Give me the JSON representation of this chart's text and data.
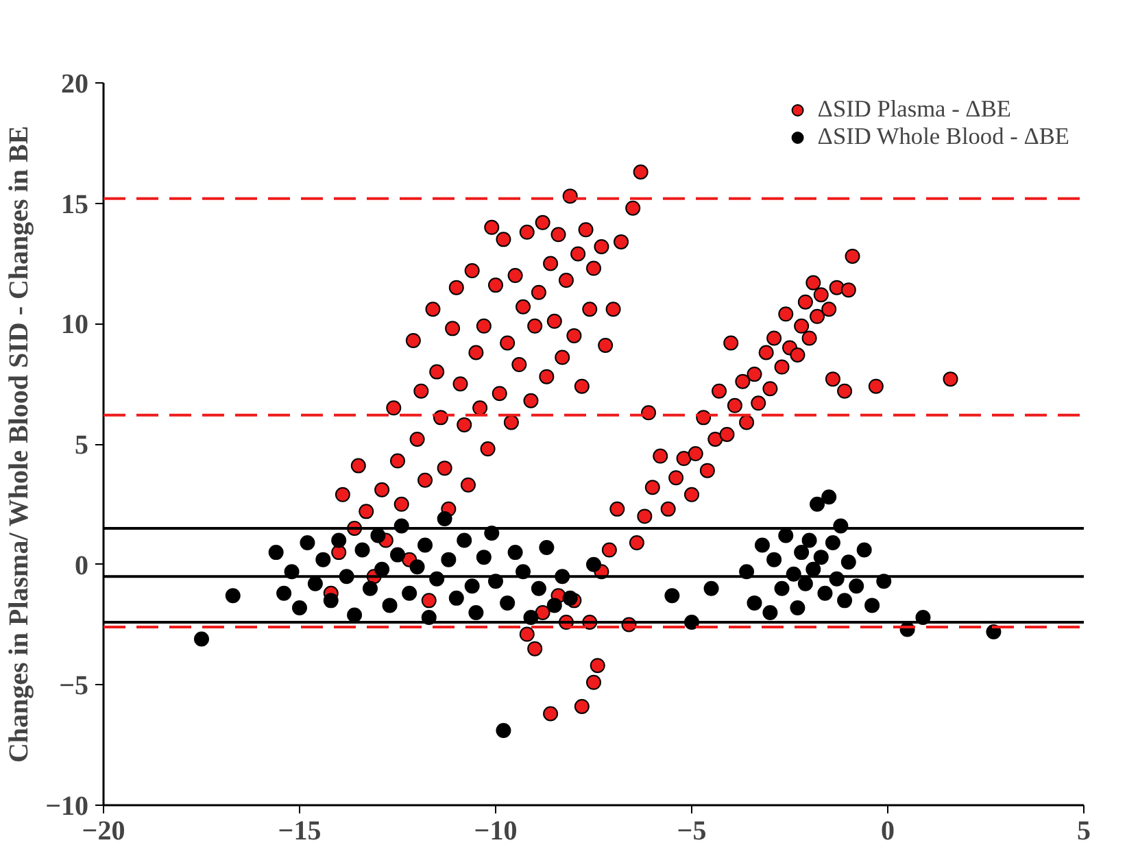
{
  "chart_data": {
    "type": "scatter",
    "ylabel": "Changes in Plasma/ Whole Blood SID - Changes in BE",
    "xlim": [
      -20,
      5
    ],
    "ylim": [
      -10,
      20
    ],
    "xticks": [
      -20,
      -15,
      -10,
      -5,
      0,
      5
    ],
    "yticks": [
      -10,
      -5,
      0,
      5,
      10,
      15,
      20
    ],
    "grid": false,
    "legend": "top right",
    "marker": "circle",
    "series": [
      {
        "name": "ΔSID Plasma - ΔBE",
        "color": "#ee1c1c",
        "x": [
          -14.2,
          -14,
          -13.9,
          -13.6,
          -13.5,
          -13.3,
          -13.1,
          -12.9,
          -12.8,
          -12.6,
          -12.5,
          -12.4,
          -12.2,
          -12.1,
          -12,
          -11.9,
          -11.8,
          -11.7,
          -11.6,
          -11.5,
          -11.4,
          -11.3,
          -11.2,
          -11.1,
          -11,
          -10.9,
          -10.8,
          -10.7,
          -10.6,
          -10.5,
          -10.4,
          -10.3,
          -10.2,
          -10.1,
          -10,
          -9.9,
          -9.8,
          -9.7,
          -9.6,
          -9.5,
          -9.4,
          -9.3,
          -9.2,
          -9.1,
          -9,
          -8.9,
          -8.8,
          -8.7,
          -8.6,
          -8.5,
          -8.4,
          -8.3,
          -8.2,
          -8.1,
          -8,
          -7.9,
          -7.8,
          -7.7,
          -7.6,
          -7.5,
          -7.3,
          -7.2,
          -7,
          -6.8,
          -6.5,
          -6.3,
          -6.1,
          -9.2,
          -9,
          -8.8,
          -8.6,
          -8.4,
          -8.2,
          -8,
          -7.8,
          -7.6,
          -7.5,
          -7.4,
          -7.3,
          -7.1,
          -6.9,
          -6.6,
          -6.4,
          -6.2,
          -6,
          -5.8,
          -5.6,
          -5.4,
          -5.2,
          -5,
          -4.9,
          -4.7,
          -4.6,
          -4.4,
          -4.3,
          -4.1,
          -4,
          -3.9,
          -3.7,
          -3.6,
          -3.4,
          -3.3,
          -3.1,
          -3,
          -2.9,
          -2.7,
          -2.6,
          -2.5,
          -2.3,
          -2.2,
          -2.1,
          -2,
          -1.9,
          -1.8,
          -1.7,
          -1.5,
          -1.4,
          -1.3,
          -1.1,
          -1,
          -0.9,
          -0.3,
          1.6
        ],
        "values": [
          -1.2,
          0.5,
          2.9,
          1.5,
          4.1,
          2.2,
          -0.5,
          3.1,
          1,
          6.5,
          4.3,
          2.5,
          0.2,
          9.3,
          5.2,
          7.2,
          3.5,
          -1.5,
          10.6,
          8,
          6.1,
          4,
          2.3,
          9.8,
          11.5,
          7.5,
          5.8,
          3.3,
          12.2,
          8.8,
          6.5,
          9.9,
          4.8,
          14,
          11.6,
          7.1,
          13.5,
          9.2,
          5.9,
          12,
          8.3,
          10.7,
          13.8,
          6.8,
          9.9,
          11.3,
          14.2,
          7.8,
          12.5,
          10.1,
          13.7,
          8.6,
          11.8,
          15.3,
          9.5,
          12.9,
          7.4,
          13.9,
          10.6,
          12.3,
          13.2,
          9.1,
          10.6,
          13.4,
          14.8,
          16.3,
          6.3,
          -2.9,
          -3.5,
          -2,
          -6.2,
          -1.3,
          -2.4,
          -1.5,
          -5.9,
          -2.4,
          -4.9,
          -4.2,
          -0.3,
          0.6,
          2.3,
          -2.5,
          0.9,
          2,
          3.2,
          4.5,
          2.3,
          3.6,
          4.4,
          2.9,
          4.6,
          6.1,
          3.9,
          5.2,
          7.2,
          5.4,
          9.2,
          6.6,
          7.6,
          5.9,
          7.9,
          6.7,
          8.8,
          7.3,
          9.4,
          8.2,
          10.4,
          9,
          8.7,
          9.9,
          10.9,
          9.4,
          11.7,
          10.3,
          11.2,
          10.6,
          7.7,
          11.5,
          7.2,
          11.4,
          12.8,
          7.4,
          7.7
        ]
      },
      {
        "name": "ΔSID Whole Blood - ΔBE",
        "color": "#000000",
        "x": [
          -17.5,
          -16.7,
          -15.6,
          -15.4,
          -15.2,
          -15,
          -14.8,
          -14.6,
          -14.4,
          -14.2,
          -14,
          -13.8,
          -13.6,
          -13.4,
          -13.2,
          -13,
          -12.9,
          -12.7,
          -12.5,
          -12.4,
          -12.2,
          -12,
          -11.8,
          -11.7,
          -11.5,
          -11.3,
          -11.2,
          -11,
          -10.8,
          -10.6,
          -10.5,
          -10.3,
          -10.1,
          -10,
          -9.8,
          -9.7,
          -9.5,
          -9.3,
          -9.1,
          -8.9,
          -8.7,
          -8.5,
          -8.3,
          -8.1,
          -7.5,
          -5.5,
          -5,
          -4.5,
          -3.6,
          -3.4,
          -3.2,
          -3,
          -2.9,
          -2.7,
          -2.6,
          -2.4,
          -2.3,
          -2.2,
          -2.1,
          -2,
          -1.9,
          -1.8,
          -1.7,
          -1.6,
          -1.5,
          -1.4,
          -1.3,
          -1.2,
          -1.1,
          -1,
          -0.8,
          -0.6,
          -0.4,
          -0.1,
          0.5,
          0.9,
          2.7
        ],
        "values": [
          -3.1,
          -1.3,
          0.5,
          -1.2,
          -0.3,
          -1.8,
          0.9,
          -0.8,
          0.2,
          -1.5,
          1,
          -0.5,
          -2.1,
          0.6,
          -1,
          1.2,
          -0.2,
          -1.7,
          0.4,
          1.6,
          -1.2,
          -0.1,
          0.8,
          -2.2,
          -0.6,
          1.9,
          0.2,
          -1.4,
          1,
          -0.9,
          -2,
          0.3,
          1.3,
          -0.7,
          -6.9,
          -1.6,
          0.5,
          -0.3,
          -2.2,
          -1,
          0.7,
          -1.7,
          -0.5,
          -1.4,
          0,
          -1.3,
          -2.4,
          -1,
          -0.3,
          -1.6,
          0.8,
          -2,
          0.2,
          -1,
          1.2,
          -0.4,
          -1.8,
          0.5,
          -0.8,
          1,
          -0.2,
          2.5,
          0.3,
          -1.2,
          2.8,
          0.9,
          -0.6,
          1.6,
          -1.5,
          0.1,
          -0.9,
          0.6,
          -1.7,
          -0.7,
          -2.7,
          -2.2,
          -2.8
        ]
      }
    ],
    "ref_lines": [
      {
        "axis": "y",
        "value": 15.2,
        "color": "#ee1c1c",
        "line_style": "dashed"
      },
      {
        "axis": "y",
        "value": 6.2,
        "color": "#ee1c1c",
        "line_style": "dashed"
      },
      {
        "axis": "y",
        "value": -2.6,
        "color": "#ee1c1c",
        "line_style": "dashed"
      },
      {
        "axis": "y",
        "value": 1.5,
        "color": "#000000",
        "line_style": "solid"
      },
      {
        "axis": "y",
        "value": -0.5,
        "color": "#000000",
        "line_style": "solid"
      },
      {
        "axis": "y",
        "value": -2.4,
        "color": "#000000",
        "line_style": "solid"
      }
    ]
  }
}
